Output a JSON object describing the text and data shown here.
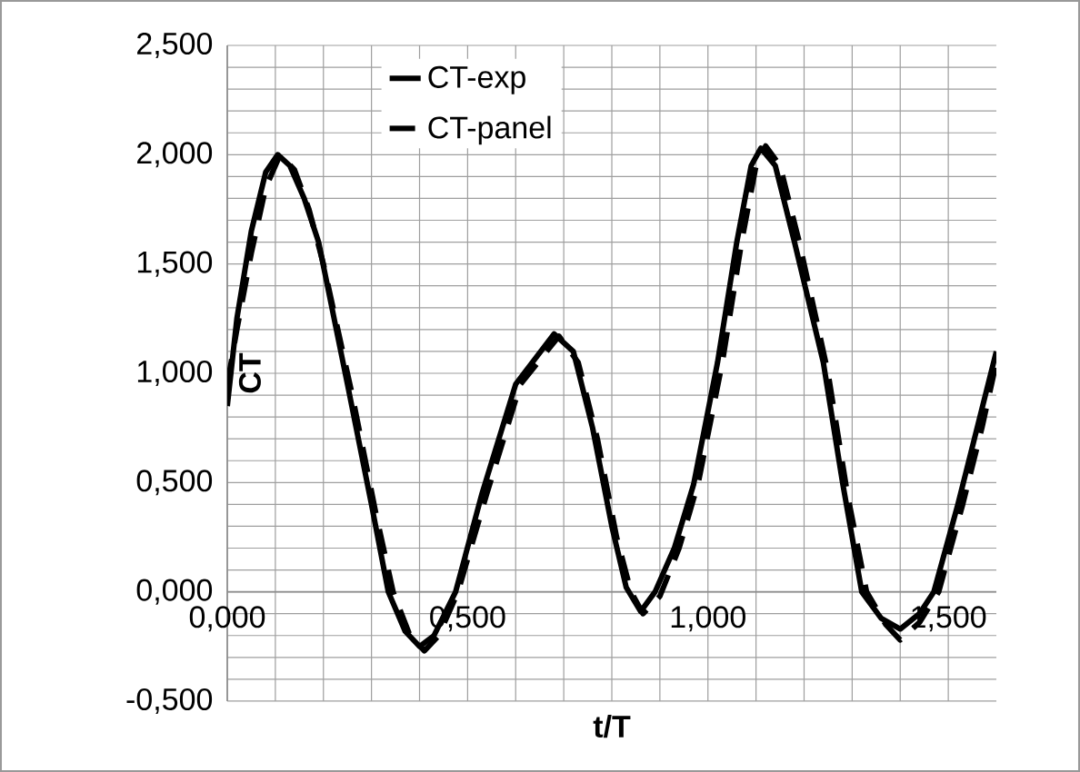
{
  "chart_data": {
    "type": "line",
    "xlabel": "t/T",
    "ylabel": "CT",
    "xlim": [
      0,
      1.6
    ],
    "ylim": [
      -0.5,
      2.5
    ],
    "xticks": [
      {
        "value": 0,
        "label": "0,000"
      },
      {
        "value": 0.5,
        "label": "0,500"
      },
      {
        "value": 1,
        "label": "1,000"
      },
      {
        "value": 1.5,
        "label": "1,500"
      }
    ],
    "yticks": [
      {
        "value": -0.5,
        "label": "-0,500"
      },
      {
        "value": 0,
        "label": "0,000"
      },
      {
        "value": 0.5,
        "label": "0,500"
      },
      {
        "value": 1,
        "label": "1,000"
      },
      {
        "value": 1.5,
        "label": "1,500"
      },
      {
        "value": 2,
        "label": "2,000"
      },
      {
        "value": 2.5,
        "label": "2,500"
      }
    ],
    "grid": true,
    "legend": "top",
    "series": [
      {
        "name": "CT-exp",
        "color": "#000000",
        "line_style": "solid",
        "x": [
          0,
          0.02,
          0.05,
          0.08,
          0.105,
          0.13,
          0.16,
          0.19,
          0.25,
          0.3,
          0.335,
          0.37,
          0.4,
          0.43,
          0.475,
          0.53,
          0.6,
          0.68,
          0.72,
          0.76,
          0.8,
          0.83,
          0.86,
          0.89,
          0.93,
          0.97,
          1.02,
          1.06,
          1.09,
          1.11,
          1.14,
          1.18,
          1.24,
          1.28,
          1.32,
          1.36,
          1.4,
          1.44,
          1.47,
          1.52,
          1.56,
          1.6
        ],
        "values": [
          0.85,
          1.25,
          1.65,
          1.92,
          2.0,
          1.95,
          1.8,
          1.6,
          0.95,
          0.4,
          0.0,
          -0.18,
          -0.25,
          -0.2,
          0.0,
          0.45,
          0.95,
          1.18,
          1.1,
          0.75,
          0.3,
          0.02,
          -0.09,
          0.0,
          0.2,
          0.49,
          1.05,
          1.6,
          1.95,
          2.03,
          1.95,
          1.6,
          1.05,
          0.5,
          0.0,
          -0.12,
          -0.17,
          -0.1,
          0.0,
          0.4,
          0.75,
          1.1
        ]
      },
      {
        "name": "CT-panel",
        "color": "#000000",
        "line_style": "dashed",
        "x": [
          0,
          0.02,
          0.05,
          0.08,
          0.11,
          0.14,
          0.17,
          0.2,
          0.26,
          0.31,
          0.345,
          0.38,
          0.41,
          0.44,
          0.48,
          0.54,
          0.61,
          0.69,
          0.73,
          0.77,
          0.81,
          0.84,
          0.865,
          0.9,
          0.94,
          0.98,
          1.03,
          1.07,
          1.1,
          1.12,
          1.15,
          1.19,
          1.25,
          1.29,
          1.33,
          1.37,
          1.4,
          1.44,
          1.48,
          1.53,
          1.57,
          1.6
        ],
        "values": [
          0.95,
          1.2,
          1.55,
          1.85,
          2.0,
          1.93,
          1.75,
          1.5,
          0.9,
          0.35,
          0.0,
          -0.2,
          -0.27,
          -0.2,
          0.0,
          0.45,
          0.95,
          1.17,
          1.05,
          0.7,
          0.25,
          0.0,
          -0.1,
          -0.02,
          0.2,
          0.5,
          1.05,
          1.6,
          1.95,
          2.04,
          1.95,
          1.6,
          1.0,
          0.45,
          0.0,
          -0.15,
          -0.22,
          -0.14,
          0.0,
          0.4,
          0.75,
          1.05
        ]
      }
    ]
  }
}
